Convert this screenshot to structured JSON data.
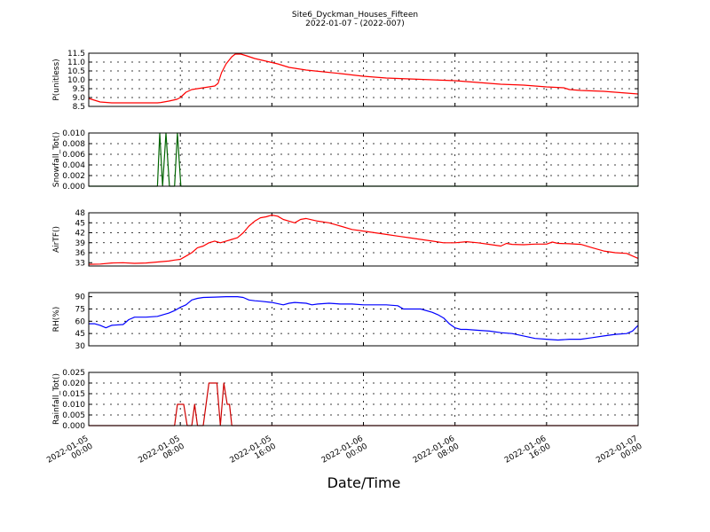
{
  "chart_data": {
    "type": "line",
    "title": "Site6_Dyckman_Houses_Fifteen",
    "subtitle": "2022-01-07 - (2022-007)",
    "xlabel": "Date/Time",
    "x_ticks": [
      "2022-01-05\n00:00",
      "2022-01-05\n08:00",
      "2022-01-05\n16:00",
      "2022-01-06\n00:00",
      "2022-01-06\n08:00",
      "2022-01-06\n16:00",
      "2022-01-07\n00:00"
    ],
    "xlim_hours": [
      0,
      48
    ],
    "grid": true,
    "panels": [
      {
        "ylabel": "P(unitless)",
        "ylim": [
          8.5,
          11.5
        ],
        "yticks": [
          "8.5",
          "9.0",
          "9.5",
          "10.0",
          "10.5",
          "11.0",
          "11.5"
        ],
        "color": "#ff0000",
        "series": [
          [
            0,
            8.95
          ],
          [
            0.5,
            8.85
          ],
          [
            1,
            8.75
          ],
          [
            2,
            8.7
          ],
          [
            4,
            8.7
          ],
          [
            5,
            8.7
          ],
          [
            6,
            8.7
          ],
          [
            6.3,
            8.72
          ],
          [
            7,
            8.8
          ],
          [
            7.7,
            8.9
          ],
          [
            8,
            9.0
          ],
          [
            8.5,
            9.3
          ],
          [
            9,
            9.45
          ],
          [
            9.5,
            9.5
          ],
          [
            10,
            9.55
          ],
          [
            10.5,
            9.6
          ],
          [
            11,
            9.65
          ],
          [
            11.3,
            9.8
          ],
          [
            11.6,
            10.4
          ],
          [
            12,
            10.9
          ],
          [
            12.5,
            11.3
          ],
          [
            12.8,
            11.45
          ],
          [
            13.3,
            11.45
          ],
          [
            13.8,
            11.35
          ],
          [
            14.5,
            11.2
          ],
          [
            15.5,
            11.05
          ],
          [
            16.5,
            10.9
          ],
          [
            17.5,
            10.7
          ],
          [
            19,
            10.55
          ],
          [
            20.5,
            10.45
          ],
          [
            22,
            10.35
          ],
          [
            24,
            10.2
          ],
          [
            26,
            10.1
          ],
          [
            28,
            10.05
          ],
          [
            30,
            10.0
          ],
          [
            32,
            9.95
          ],
          [
            34,
            9.85
          ],
          [
            36,
            9.75
          ],
          [
            38,
            9.7
          ],
          [
            40,
            9.6
          ],
          [
            41.5,
            9.55
          ],
          [
            42,
            9.45
          ],
          [
            43,
            9.4
          ],
          [
            45,
            9.35
          ],
          [
            47,
            9.25
          ],
          [
            48,
            9.2
          ]
        ]
      },
      {
        "ylabel": "Snowfall_Tot()",
        "ylim": [
          0.0,
          0.01
        ],
        "yticks": [
          "0.000",
          "0.002",
          "0.004",
          "0.006",
          "0.008",
          "0.010"
        ],
        "color": "#006400",
        "series": [
          [
            0,
            0
          ],
          [
            6,
            0
          ],
          [
            6.2,
            0.01
          ],
          [
            6.45,
            0
          ],
          [
            6.75,
            0.01
          ],
          [
            7.05,
            0
          ],
          [
            7.5,
            0
          ],
          [
            7.75,
            0.01
          ],
          [
            8.05,
            0
          ],
          [
            48,
            0
          ]
        ]
      },
      {
        "ylabel": "AirTF()",
        "ylim": [
          32,
          48
        ],
        "yticks": [
          "33",
          "36",
          "39",
          "42",
          "45",
          "48"
        ],
        "color": "#ff0000",
        "series": [
          [
            0,
            32.5
          ],
          [
            1,
            32.6
          ],
          [
            2,
            32.9
          ],
          [
            3,
            33.0
          ],
          [
            4,
            32.8
          ],
          [
            5,
            32.9
          ],
          [
            6,
            33.2
          ],
          [
            7,
            33.5
          ],
          [
            7.5,
            33.8
          ],
          [
            8,
            34.0
          ],
          [
            8.5,
            35.0
          ],
          [
            9,
            36.0
          ],
          [
            9.5,
            37.5
          ],
          [
            10,
            38.0
          ],
          [
            10.5,
            39.0
          ],
          [
            11,
            39.5
          ],
          [
            11.5,
            39.0
          ],
          [
            12,
            39.5
          ],
          [
            12.5,
            40.0
          ],
          [
            13,
            40.5
          ],
          [
            13.5,
            42.0
          ],
          [
            14,
            44.0
          ],
          [
            14.5,
            45.5
          ],
          [
            15,
            46.5
          ],
          [
            15.5,
            46.8
          ],
          [
            16,
            47.3
          ],
          [
            16.5,
            47.0
          ],
          [
            17,
            46.0
          ],
          [
            17.5,
            45.5
          ],
          [
            18,
            45.0
          ],
          [
            18.5,
            46.0
          ],
          [
            19,
            46.3
          ],
          [
            20,
            45.5
          ],
          [
            21,
            45.0
          ],
          [
            22,
            44.0
          ],
          [
            23,
            43.0
          ],
          [
            24,
            42.5
          ],
          [
            25,
            42.0
          ],
          [
            26,
            41.5
          ],
          [
            27,
            41.0
          ],
          [
            28,
            40.5
          ],
          [
            29,
            40.0
          ],
          [
            30,
            39.5
          ],
          [
            31,
            39.0
          ],
          [
            32,
            39.0
          ],
          [
            33,
            39.3
          ],
          [
            34,
            39.0
          ],
          [
            35,
            38.5
          ],
          [
            36,
            38.0
          ],
          [
            36.5,
            38.8
          ],
          [
            37,
            38.5
          ],
          [
            38,
            38.4
          ],
          [
            39,
            38.6
          ],
          [
            40,
            38.6
          ],
          [
            40.5,
            39.2
          ],
          [
            41,
            38.8
          ],
          [
            42,
            38.7
          ],
          [
            43,
            38.5
          ],
          [
            44,
            37.5
          ],
          [
            45,
            36.5
          ],
          [
            46,
            36.0
          ],
          [
            47,
            35.8
          ],
          [
            48,
            34.3
          ]
        ]
      },
      {
        "ylabel": "RH(%)",
        "ylim": [
          30,
          95
        ],
        "yticks": [
          "30",
          "45",
          "60",
          "75",
          "90"
        ],
        "color": "#0000ff",
        "series": [
          [
            0,
            57
          ],
          [
            0.5,
            57
          ],
          [
            1,
            55
          ],
          [
            1.5,
            52
          ],
          [
            2,
            55
          ],
          [
            3,
            56
          ],
          [
            3.5,
            62
          ],
          [
            4,
            65
          ],
          [
            5,
            65
          ],
          [
            6,
            66
          ],
          [
            7,
            70
          ],
          [
            7.5,
            73
          ],
          [
            8,
            77
          ],
          [
            8.5,
            80
          ],
          [
            9,
            86
          ],
          [
            9.5,
            88
          ],
          [
            10,
            89
          ],
          [
            11,
            89.5
          ],
          [
            12,
            90
          ],
          [
            13,
            90
          ],
          [
            13.5,
            89
          ],
          [
            14,
            86
          ],
          [
            14.5,
            85
          ],
          [
            15,
            84.5
          ],
          [
            16,
            83
          ],
          [
            17,
            80
          ],
          [
            17.5,
            82
          ],
          [
            18,
            83
          ],
          [
            19,
            82
          ],
          [
            19.5,
            80
          ],
          [
            20,
            81
          ],
          [
            21,
            82
          ],
          [
            22,
            81
          ],
          [
            23,
            81
          ],
          [
            24,
            80
          ],
          [
            25,
            80
          ],
          [
            26,
            80
          ],
          [
            27,
            79
          ],
          [
            27.5,
            75
          ],
          [
            28,
            75
          ],
          [
            29,
            75
          ],
          [
            30,
            71
          ],
          [
            30.5,
            68
          ],
          [
            31,
            64
          ],
          [
            31.5,
            57
          ],
          [
            32,
            52
          ],
          [
            32.5,
            50
          ],
          [
            33,
            50
          ],
          [
            34,
            49
          ],
          [
            35,
            48
          ],
          [
            36,
            46
          ],
          [
            37,
            45
          ],
          [
            38,
            42
          ],
          [
            39,
            39
          ],
          [
            40,
            38
          ],
          [
            41,
            37
          ],
          [
            42,
            38
          ],
          [
            43,
            38
          ],
          [
            44,
            40
          ],
          [
            45,
            42
          ],
          [
            46,
            44
          ],
          [
            47,
            45
          ],
          [
            47.5,
            48
          ],
          [
            48,
            55
          ]
        ]
      },
      {
        "ylabel": "Rainfall_Tot()",
        "ylim": [
          0.0,
          0.025
        ],
        "yticks": [
          "0.000",
          "0.005",
          "0.010",
          "0.015",
          "0.020",
          "0.025"
        ],
        "color": "#cc0000",
        "series": [
          [
            0,
            0
          ],
          [
            7.5,
            0
          ],
          [
            7.75,
            0.01
          ],
          [
            8.3,
            0.01
          ],
          [
            8.6,
            0
          ],
          [
            9,
            0
          ],
          [
            9.25,
            0.01
          ],
          [
            9.5,
            0
          ],
          [
            10,
            0
          ],
          [
            10.5,
            0.02
          ],
          [
            11.2,
            0.02
          ],
          [
            11.5,
            0
          ],
          [
            11.8,
            0.02
          ],
          [
            12.1,
            0.01
          ],
          [
            12.3,
            0.01
          ],
          [
            12.5,
            0
          ],
          [
            48,
            0
          ]
        ]
      }
    ]
  }
}
